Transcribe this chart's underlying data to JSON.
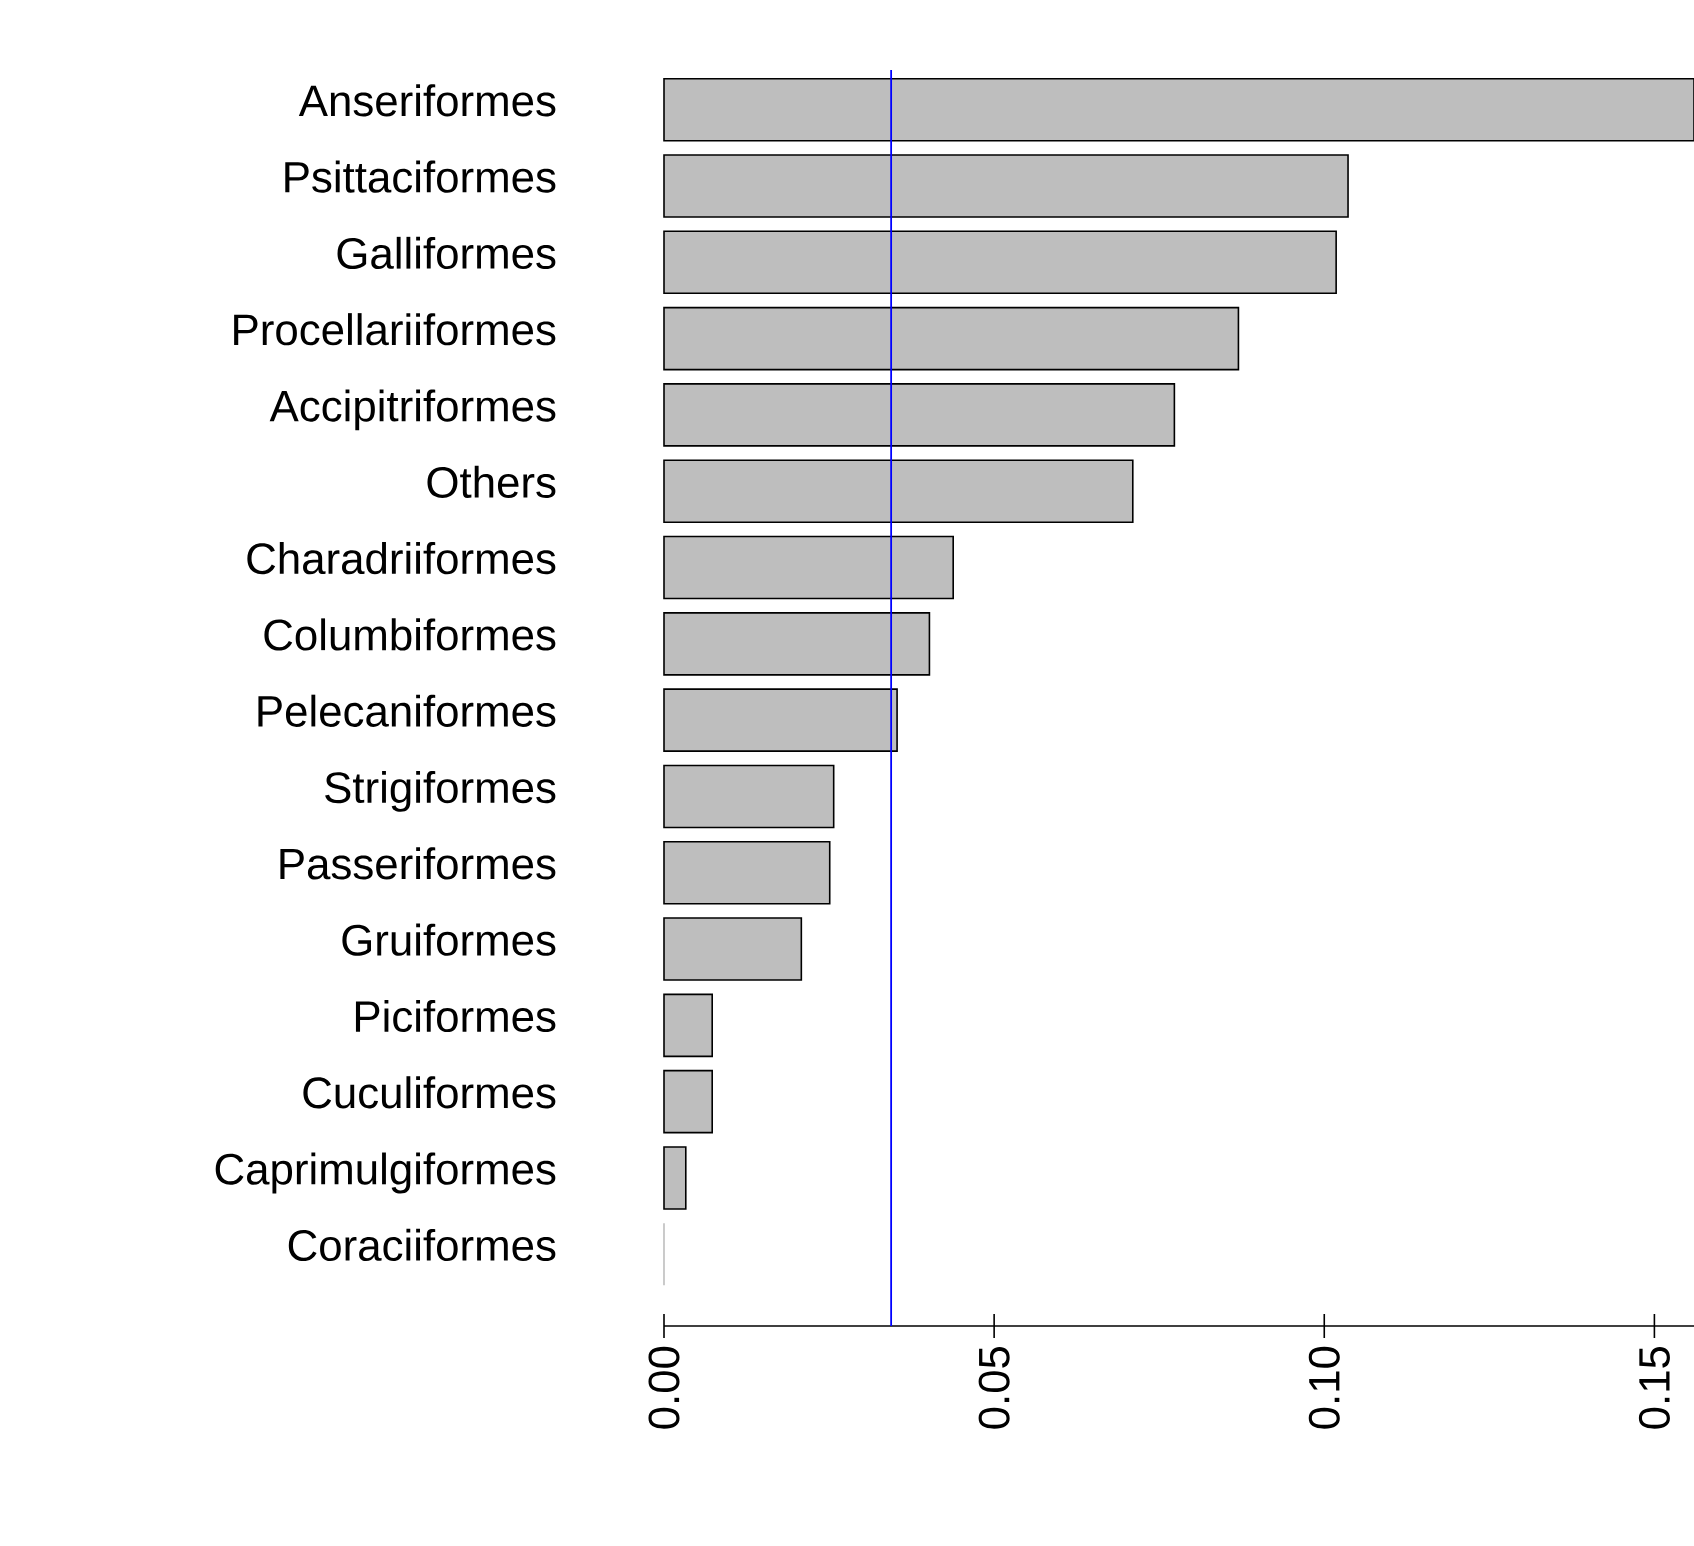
{
  "chart_data": {
    "type": "bar",
    "orientation": "horizontal",
    "categories": [
      "Anseriformes",
      "Psittaciformes",
      "Galliformes",
      "Procellariiformes",
      "Accipitriformes",
      "Others",
      "Charadriiformes",
      "Columbiformes",
      "Pelecaniformes",
      "Strigiformes",
      "Passeriformes",
      "Gruiformes",
      "Piciformes",
      "Cuculiformes",
      "Caprimulgiformes",
      "Coraciiformes"
    ],
    "values": [
      0.156,
      0.1036,
      0.1018,
      0.087,
      0.0773,
      0.071,
      0.0438,
      0.0402,
      0.0353,
      0.0257,
      0.0251,
      0.0208,
      0.0073,
      0.0073,
      0.0033,
      0.0
    ],
    "color": "#bebebe",
    "xlim": [
      0,
      0.156
    ],
    "xticks": [
      {
        "value": 0,
        "label": "0.00"
      },
      {
        "value": 0.05,
        "label": "0.05"
      },
      {
        "value": 0.1,
        "label": "0.10"
      },
      {
        "value": 0.15,
        "label": "0.15"
      }
    ],
    "ref_lines": [
      {
        "axis": "x",
        "value": 0.0344,
        "color": "#0000ff"
      }
    ]
  }
}
